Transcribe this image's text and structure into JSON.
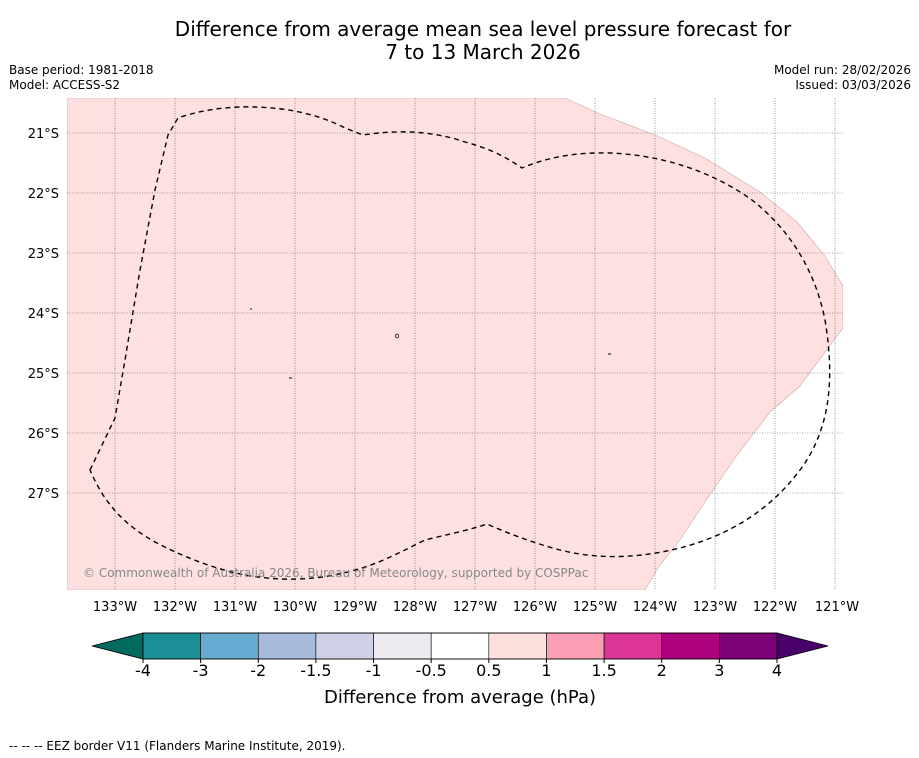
{
  "title": {
    "line1": "Difference from average mean sea level pressure forecast for",
    "line2": "7 to 13 March 2026"
  },
  "meta": {
    "base_period": "Base period: 1981-2018",
    "model": "Model: ACCESS-S2",
    "model_run": "Model run: 28/02/2026",
    "issued": "Issued: 03/03/2026"
  },
  "map": {
    "lat_labels": [
      "21°S",
      "22°S",
      "23°S",
      "24°S",
      "25°S",
      "26°S",
      "27°S"
    ],
    "lon_labels": [
      "133°W",
      "132°W",
      "131°W",
      "130°W",
      "129°W",
      "128°W",
      "127°W",
      "126°W",
      "125°W",
      "124°W",
      "123°W",
      "122°W",
      "121°W"
    ],
    "copyright": "© Commonwealth of Australia 2026, Bureau of Meteorology, supported by COSPPac",
    "shade_color": "#fde0df",
    "shade_category": "0.5 to 1"
  },
  "colorbar": {
    "ticks": [
      "-4",
      "-3",
      "-2",
      "-1.5",
      "-1",
      "-0.5",
      "0.5",
      "1",
      "1.5",
      "2",
      "3",
      "4"
    ],
    "colors": [
      "#1a9096",
      "#68abd0",
      "#a6bbdb",
      "#d0d1e6",
      "#eeebf0",
      "#ffffff",
      "#fde0dd",
      "#fa9fb5",
      "#dd3497",
      "#ae017e",
      "#7a0177"
    ],
    "low_extend_color": "#006a5e",
    "high_extend_color": "#49006a",
    "label": "Difference from average (hPa)"
  },
  "footer": "--  --  -- EEZ border V11 (Flanders Marine Institute, 2019)."
}
